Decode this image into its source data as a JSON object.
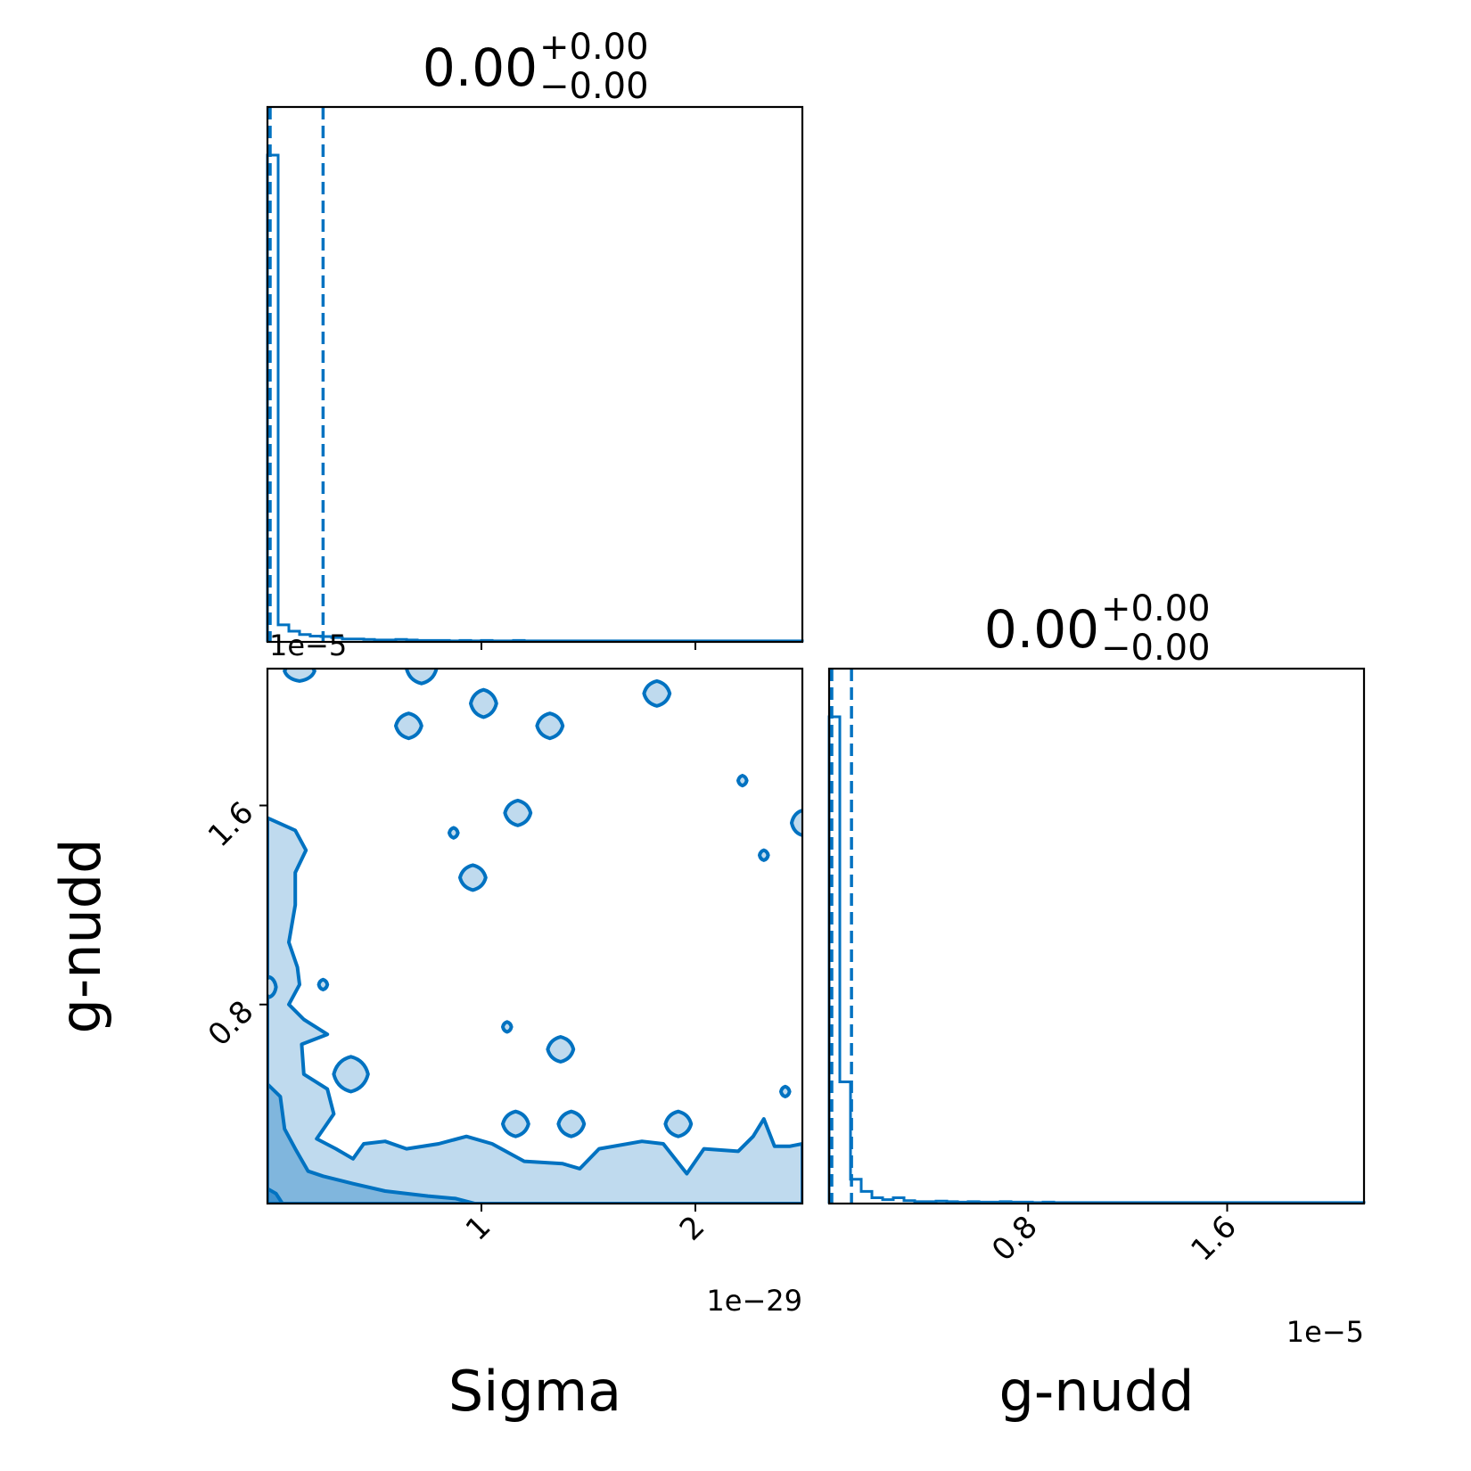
{
  "colors": {
    "series": "#0072c1",
    "contour_fill_outer": "#bfdaee",
    "contour_fill_mid": "#80b6dd",
    "contour_fill_inner": "#3f92cf",
    "axes": "#000000",
    "background": "#ffffff"
  },
  "chart_data": [
    {
      "type": "histogram",
      "panel": "top-left",
      "parameter": "Sigma",
      "title_value": "0.00",
      "title_plus": "+0.00",
      "title_minus": "−0.00",
      "xlim": [
        0,
        2.5e-29
      ],
      "bin_width": 5e-31,
      "bin_heights": [
        1.0,
        0.035,
        0.022,
        0.015,
        0.012,
        0.011,
        0.009,
        0.006,
        0.006,
        0.005,
        0.004,
        0.004,
        0.005,
        0.004,
        0.003,
        0.003,
        0.003,
        0.002,
        0.003,
        0.002,
        0.003,
        0.002,
        0.002,
        0.003,
        0.002,
        0.002,
        0.002,
        0.002,
        0.002,
        0.002,
        0.002,
        0.002,
        0.002,
        0.002,
        0.002,
        0.002,
        0.002,
        0.002,
        0.002,
        0.002,
        0.002,
        0.002,
        0.002,
        0.002,
        0.002,
        0.002,
        0.002,
        0.002,
        0.002,
        0.002
      ],
      "quantile_lines": [
        0,
        0,
        2.6e-30
      ]
    },
    {
      "type": "histogram",
      "panel": "bottom-right",
      "parameter": "g-nudd",
      "title_value": "0.00",
      "title_plus": "+0.00",
      "title_minus": "−0.00",
      "xlim": [
        0,
        2.15e-05
      ],
      "xlabel": "g-nudd",
      "x_ticks": [
        {
          "value": 8e-06,
          "label": "0.8"
        },
        {
          "value": 1.6e-05,
          "label": "1.6"
        }
      ],
      "x_offset_text": "1e−5",
      "bin_width": 4.3e-07,
      "bin_heights": [
        1.0,
        0.25,
        0.05,
        0.025,
        0.012,
        0.008,
        0.012,
        0.006,
        0.004,
        0.004,
        0.005,
        0.004,
        0.003,
        0.004,
        0.003,
        0.003,
        0.004,
        0.003,
        0.003,
        0.002,
        0.003,
        0.002,
        0.002,
        0.002,
        0.002,
        0.002,
        0.002,
        0.002,
        0.002,
        0.002,
        0.002,
        0.002,
        0.002,
        0.002,
        0.002,
        0.002,
        0.002,
        0.002,
        0.002,
        0.002,
        0.002,
        0.002,
        0.002,
        0.002,
        0.002,
        0.002,
        0.002,
        0.002,
        0.002,
        0.002
      ],
      "quantile_lines": [
        0,
        0,
        9e-07
      ]
    },
    {
      "type": "contour",
      "panel": "bottom-left",
      "x_parameter": "Sigma",
      "y_parameter": "g-nudd",
      "xlabel": "Sigma",
      "ylabel": "g-nudd",
      "xlim": [
        0,
        2.5e-29
      ],
      "ylim": [
        0,
        2.15e-05
      ],
      "x_ticks": [
        {
          "value": 1e-29,
          "label": "1"
        },
        {
          "value": 2e-29,
          "label": "2"
        }
      ],
      "y_ticks": [
        {
          "value": 8e-06,
          "label": "0.8"
        },
        {
          "value": 1.6e-05,
          "label": "1.6"
        }
      ],
      "x_offset_text": "1e−29",
      "y_offset_text": "1e−5",
      "outer_contour": [
        [
          0,
          0
        ],
        [
          0,
          1.55e-05
        ],
        [
          1.3e-30,
          1.5e-05
        ],
        [
          1.8e-30,
          1.42e-05
        ],
        [
          1.3e-30,
          1.33e-05
        ],
        [
          1.3e-30,
          1.2e-05
        ],
        [
          1e-30,
          1.05e-05
        ],
        [
          1.4e-30,
          9.5e-06
        ],
        [
          1.5e-30,
          8.8e-06
        ],
        [
          1e-30,
          8e-06
        ],
        [
          1.7e-30,
          7.4e-06
        ],
        [
          2.8e-30,
          6.8e-06
        ],
        [
          1.6e-30,
          6.4e-06
        ],
        [
          1.7e-30,
          5.2e-06
        ],
        [
          2.8e-30,
          4.6e-06
        ],
        [
          3.1e-30,
          3.6e-06
        ],
        [
          2.3e-30,
          2.6e-06
        ],
        [
          3.2e-30,
          2.2e-06
        ],
        [
          4e-30,
          1.8e-06
        ],
        [
          4.5e-30,
          2.4e-06
        ],
        [
          5.5e-30,
          2.5e-06
        ],
        [
          6.5e-30,
          2.2e-06
        ],
        [
          8e-30,
          2.4e-06
        ],
        [
          9.3e-30,
          2.7e-06
        ],
        [
          1.05e-29,
          2.4e-06
        ],
        [
          1.2e-29,
          1.7e-06
        ],
        [
          1.38e-29,
          1.6e-06
        ],
        [
          1.46e-29,
          1.4e-06
        ],
        [
          1.55e-29,
          2.2e-06
        ],
        [
          1.75e-29,
          2.5e-06
        ],
        [
          1.85e-29,
          2.4e-06
        ],
        [
          1.96e-29,
          1.2e-06
        ],
        [
          2.04e-29,
          2.2e-06
        ],
        [
          2.2e-29,
          2.1e-06
        ],
        [
          2.27e-29,
          2.7e-06
        ],
        [
          2.32e-29,
          3.4e-06
        ],
        [
          2.37e-29,
          2.3e-06
        ],
        [
          2.44e-29,
          2.3e-06
        ],
        [
          2.5e-29,
          2.4e-06
        ],
        [
          2.5e-29,
          0
        ]
      ],
      "mid_contour": [
        [
          0,
          0
        ],
        [
          0,
          4.8e-06
        ],
        [
          6e-31,
          4.3e-06
        ],
        [
          8e-31,
          3e-06
        ],
        [
          1.3e-30,
          2.2e-06
        ],
        [
          1.9e-30,
          1.3e-06
        ],
        [
          2.6e-30,
          1.1e-06
        ],
        [
          4e-30,
          8e-07
        ],
        [
          5.5e-30,
          5e-07
        ],
        [
          7.5e-30,
          3e-07
        ],
        [
          8.8e-30,
          2e-07
        ],
        [
          9.7e-30,
          0
        ]
      ],
      "inner_contour": [
        [
          0,
          0
        ],
        [
          0,
          6e-07
        ],
        [
          4e-31,
          4e-07
        ],
        [
          7e-31,
          0
        ]
      ],
      "islands": [
        {
          "x": 7.2e-30,
          "y": 2.15e-05,
          "rx": 7e-31,
          "ry": 6e-07
        },
        {
          "x": 1.01e-29,
          "y": 2.01e-05,
          "rx": 6e-31,
          "ry": 5.5e-07
        },
        {
          "x": 1.82e-29,
          "y": 2.05e-05,
          "rx": 6e-31,
          "ry": 5e-07
        },
        {
          "x": 6.6e-30,
          "y": 1.92e-05,
          "rx": 6e-31,
          "ry": 5e-07
        },
        {
          "x": 1.32e-29,
          "y": 1.92e-05,
          "rx": 6e-31,
          "ry": 5e-07
        },
        {
          "x": 1.17e-29,
          "y": 1.57e-05,
          "rx": 6e-31,
          "ry": 5e-07
        },
        {
          "x": 9.6e-30,
          "y": 1.31e-05,
          "rx": 6e-31,
          "ry": 5e-07
        },
        {
          "x": 1.37e-29,
          "y": 6.2e-06,
          "rx": 6e-31,
          "ry": 5e-07
        },
        {
          "x": 3.9e-30,
          "y": 5.2e-06,
          "rx": 8e-31,
          "ry": 7e-07
        },
        {
          "x": 1.16e-29,
          "y": 3.2e-06,
          "rx": 6e-31,
          "ry": 5e-07
        },
        {
          "x": 1.42e-29,
          "y": 3.2e-06,
          "rx": 6e-31,
          "ry": 5e-07
        },
        {
          "x": 1.92e-29,
          "y": 3.2e-06,
          "rx": 6e-31,
          "ry": 5e-07
        },
        {
          "x": 2.5e-29,
          "y": 1.53e-05,
          "rx": 5e-31,
          "ry": 5e-07
        },
        {
          "x": 8.7e-30,
          "y": 1.49e-05,
          "rx": 2e-31,
          "ry": 2e-07
        },
        {
          "x": 2.22e-29,
          "y": 1.7e-05,
          "rx": 2e-31,
          "ry": 2e-07
        },
        {
          "x": 2.32e-29,
          "y": 1.4e-05,
          "rx": 2e-31,
          "ry": 2e-07
        },
        {
          "x": 2.6e-30,
          "y": 8.8e-06,
          "rx": 2e-31,
          "ry": 2e-07
        },
        {
          "x": 1.12e-29,
          "y": 7.1e-06,
          "rx": 2e-31,
          "ry": 2e-07
        },
        {
          "x": 2.42e-29,
          "y": 4.5e-06,
          "rx": 2e-31,
          "ry": 2e-07
        },
        {
          "x": 1e-31,
          "y": 8.7e-06,
          "rx": 3e-31,
          "ry": 4e-07
        },
        {
          "x": 1.5e-30,
          "y": 2.14e-05,
          "rx": 7e-31,
          "ry": 4e-07
        }
      ]
    }
  ]
}
